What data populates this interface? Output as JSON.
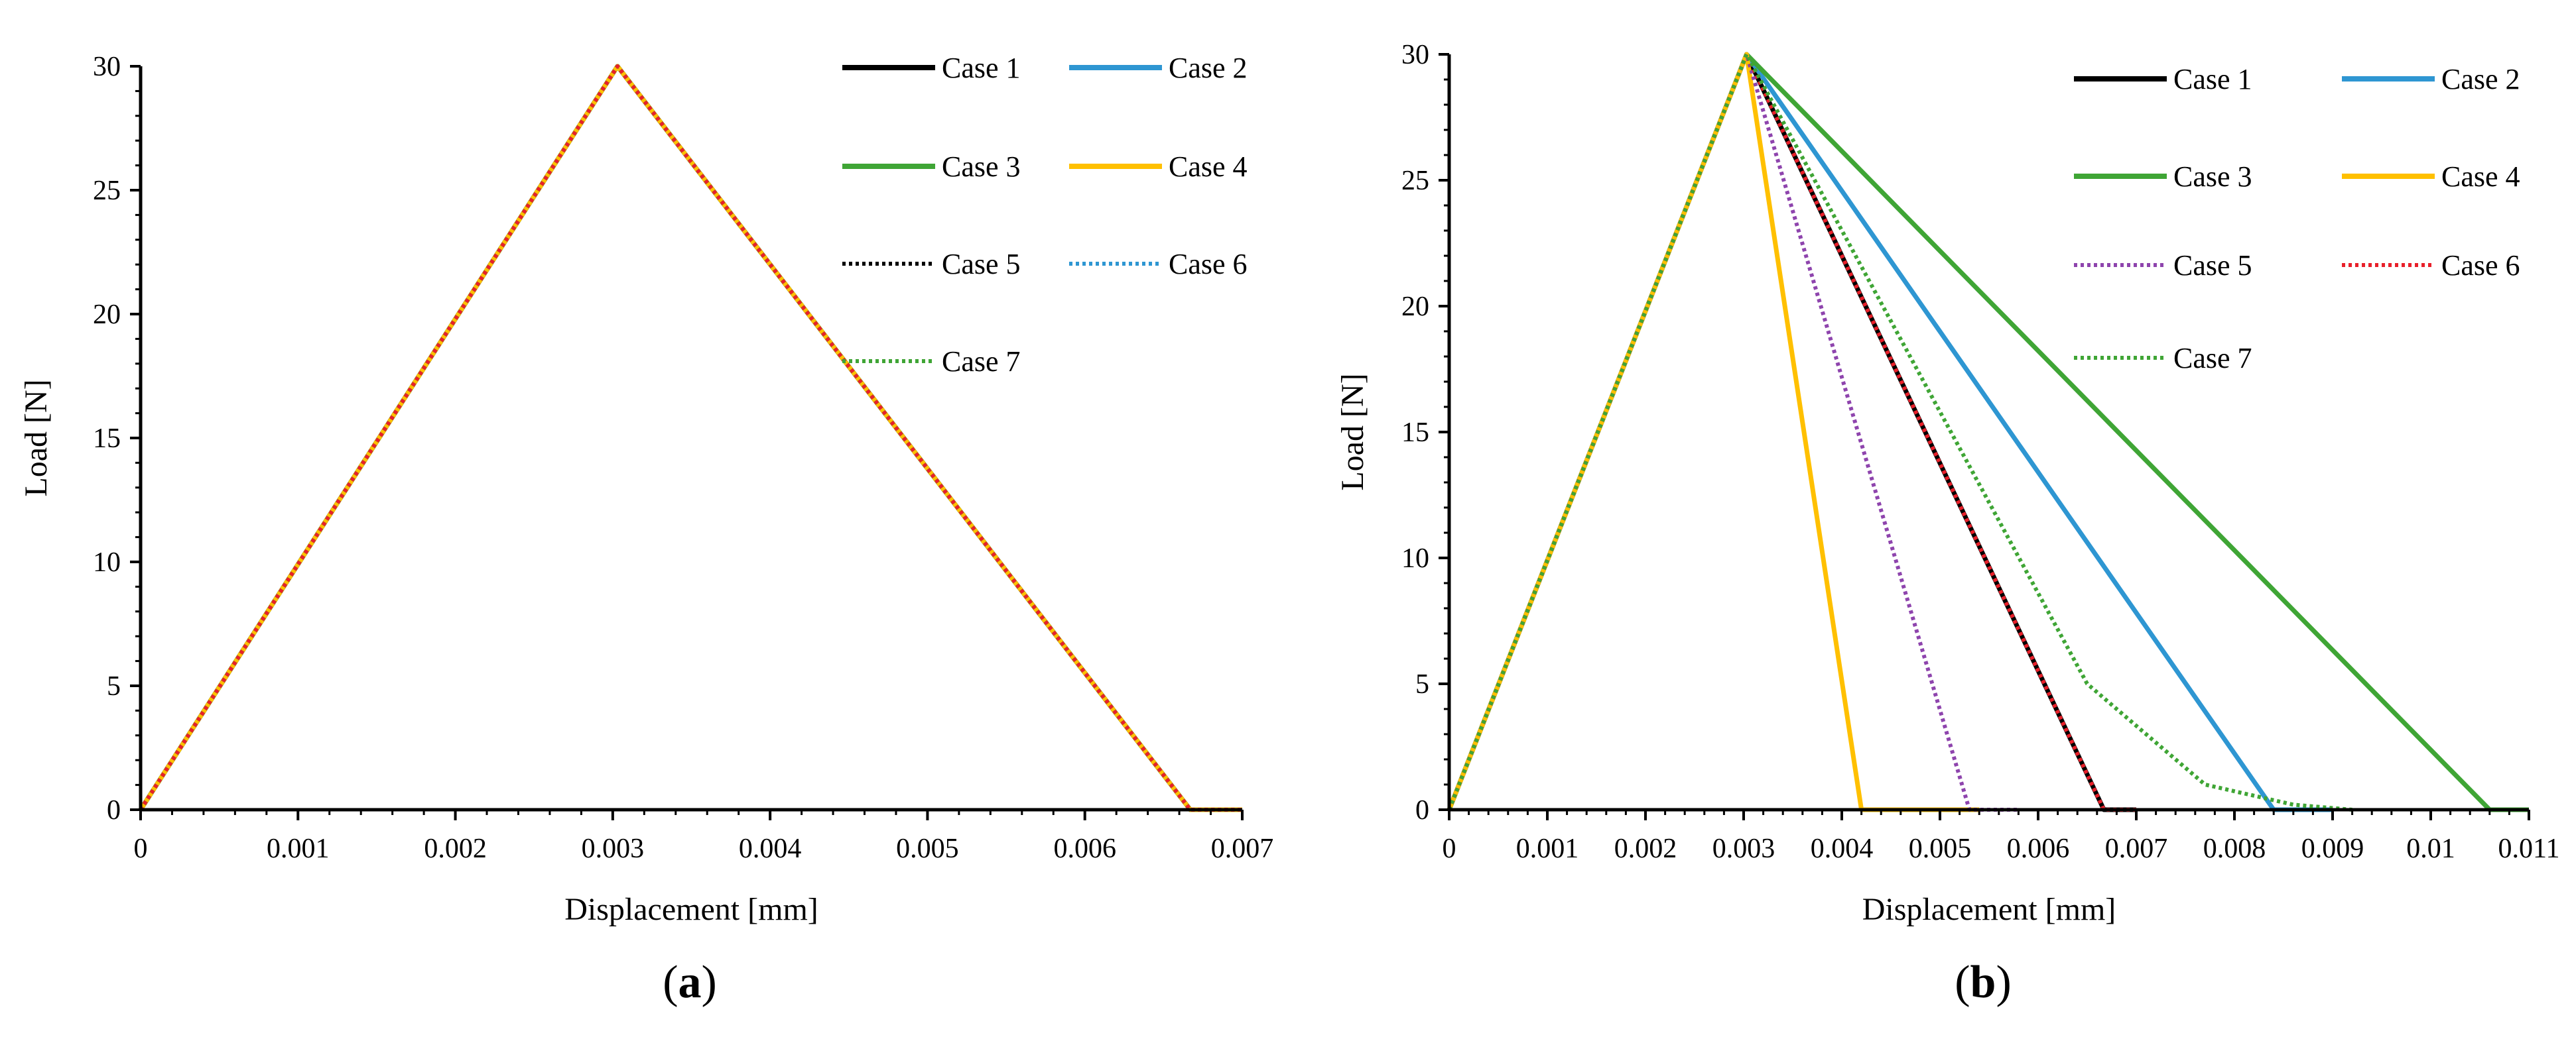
{
  "chart_data": [
    {
      "type": "line",
      "panel_label": "a",
      "xlabel": "Displacement [mm]",
      "ylabel": "Load [N]",
      "xlim": [
        0,
        0.007
      ],
      "ylim": [
        0,
        30
      ],
      "x_ticks": [
        0,
        0.001,
        0.002,
        0.003,
        0.004,
        0.005,
        0.006,
        0.007
      ],
      "x_tick_labels": [
        "0",
        "0.001",
        "0.002",
        "0.003",
        "0.004",
        "0.005",
        "0.006",
        "0.007"
      ],
      "y_ticks": [
        0,
        5,
        10,
        15,
        20,
        25,
        30
      ],
      "y_tick_labels": [
        "0",
        "5",
        "10",
        "15",
        "20",
        "25",
        "30"
      ],
      "grid": false,
      "legend_position": "top-right",
      "series": [
        {
          "name": "Case 1",
          "color": "#000000",
          "style": "solid",
          "points": [
            [
              0,
              0
            ],
            [
              0.00303,
              30
            ],
            [
              0.00667,
              0
            ],
            [
              0.007,
              0
            ]
          ]
        },
        {
          "name": "Case 2",
          "color": "#2E96D2",
          "style": "solid",
          "points": [
            [
              0,
              0
            ],
            [
              0.00303,
              30
            ],
            [
              0.00667,
              0
            ],
            [
              0.007,
              0
            ]
          ]
        },
        {
          "name": "Case 3",
          "color": "#3FA535",
          "style": "solid",
          "points": [
            [
              0,
              0
            ],
            [
              0.00303,
              30
            ],
            [
              0.00667,
              0
            ],
            [
              0.007,
              0
            ]
          ]
        },
        {
          "name": "Case 4",
          "color": "#FFC000",
          "style": "solid",
          "points": [
            [
              0,
              0
            ],
            [
              0.00303,
              30
            ],
            [
              0.00667,
              0
            ],
            [
              0.007,
              0
            ]
          ]
        },
        {
          "name": "Case 5",
          "color": "#000000",
          "style": "dotted",
          "points": [
            [
              0,
              0
            ],
            [
              0.00303,
              30
            ],
            [
              0.00667,
              0
            ],
            [
              0.007,
              0
            ]
          ]
        },
        {
          "name": "Case 6",
          "color": "#2E96D2",
          "style": "dotted",
          "points": [
            [
              0,
              0
            ],
            [
              0.00303,
              30
            ],
            [
              0.00667,
              0
            ],
            [
              0.007,
              0
            ]
          ]
        },
        {
          "name": "Case 7",
          "color": "#3FA535",
          "style": "dotted",
          "points": [
            [
              0,
              0
            ],
            [
              0.00303,
              30
            ],
            [
              0.00667,
              0
            ],
            [
              0.007,
              0
            ]
          ]
        },
        {
          "name": "",
          "color": "#E8202A",
          "style": "dotted",
          "points": [
            [
              0,
              0
            ],
            [
              0.00303,
              30
            ],
            [
              0.00667,
              0
            ],
            [
              0.007,
              0
            ]
          ]
        }
      ]
    },
    {
      "type": "line",
      "panel_label": "b",
      "xlabel": "Displacement [mm]",
      "ylabel": "Load [N]",
      "xlim": [
        0,
        0.011
      ],
      "ylim": [
        0,
        30
      ],
      "x_ticks": [
        0,
        0.001,
        0.002,
        0.003,
        0.004,
        0.005,
        0.006,
        0.007,
        0.008,
        0.009,
        0.01,
        0.011
      ],
      "x_tick_labels": [
        "0",
        "0.001",
        "0.002",
        "0.003",
        "0.004",
        "0.005",
        "0.006",
        "0.007",
        "0.008",
        "0.009",
        "0.01",
        "0.011"
      ],
      "y_ticks": [
        0,
        5,
        10,
        15,
        20,
        25,
        30
      ],
      "y_tick_labels": [
        "0",
        "5",
        "10",
        "15",
        "20",
        "25",
        "30"
      ],
      "grid": false,
      "legend_position": "top-right",
      "series": [
        {
          "name": "Case 1",
          "color": "#000000",
          "style": "solid",
          "points": [
            [
              0,
              0
            ],
            [
              0.00303,
              30
            ],
            [
              0.00667,
              0
            ],
            [
              0.007,
              0
            ]
          ]
        },
        {
          "name": "Case 2",
          "color": "#2E96D2",
          "style": "solid",
          "points": [
            [
              0,
              0
            ],
            [
              0.00303,
              30
            ],
            [
              0.0084,
              0
            ],
            [
              0.009,
              0
            ]
          ]
        },
        {
          "name": "Case 3",
          "color": "#3FA535",
          "style": "solid",
          "points": [
            [
              0,
              0
            ],
            [
              0.00303,
              30
            ],
            [
              0.0106,
              0
            ],
            [
              0.011,
              0
            ]
          ]
        },
        {
          "name": "Case 4",
          "color": "#FFC000",
          "style": "solid",
          "points": [
            [
              0,
              0
            ],
            [
              0.00303,
              30
            ],
            [
              0.0042,
              0
            ],
            [
              0.0054,
              0
            ]
          ]
        },
        {
          "name": "Case 5",
          "color": "#8E44AD",
          "style": "dotted",
          "points": [
            [
              0,
              0
            ],
            [
              0.00303,
              30
            ],
            [
              0.0053,
              0
            ],
            [
              0.0058,
              0
            ]
          ]
        },
        {
          "name": "Case 6",
          "color": "#E8202A",
          "style": "dotted",
          "points": [
            [
              0,
              0
            ],
            [
              0.00303,
              30
            ],
            [
              0.00667,
              0
            ],
            [
              0.007,
              0
            ]
          ]
        },
        {
          "name": "Case 7",
          "color": "#3FA535",
          "style": "dotted",
          "points": [
            [
              0,
              0
            ],
            [
              0.00303,
              30
            ],
            [
              0.0065,
              5
            ],
            [
              0.0077,
              1
            ],
            [
              0.0086,
              0.2
            ],
            [
              0.0092,
              0
            ]
          ]
        }
      ]
    }
  ]
}
